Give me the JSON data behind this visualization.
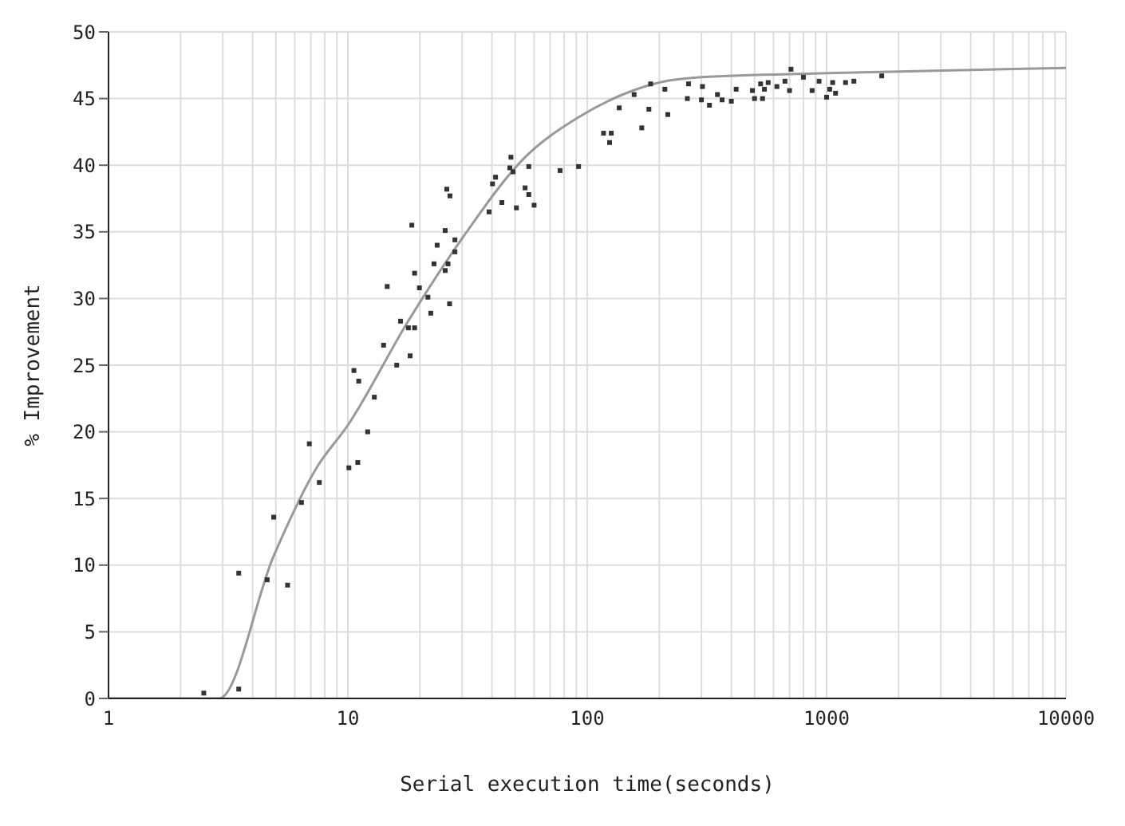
{
  "chart_data": {
    "type": "scatter",
    "xlabel": "Serial execution time(seconds)",
    "ylabel": "% Improvement",
    "log": "x",
    "grid": true,
    "xlim": [
      1,
      10000
    ],
    "ylim": [
      0,
      50
    ],
    "xticks": [
      1,
      {
        "value": 2,
        "label": null
      },
      {
        "value": 3,
        "label": null
      },
      {
        "value": 4,
        "label": null
      },
      {
        "value": 5,
        "label": null
      },
      {
        "value": 6,
        "label": null
      },
      {
        "value": 7,
        "label": null
      },
      {
        "value": 8,
        "label": null
      },
      {
        "value": 9,
        "label": null
      },
      10,
      {
        "value": 20,
        "label": null
      },
      {
        "value": 30,
        "label": null
      },
      {
        "value": 40,
        "label": null
      },
      {
        "value": 50,
        "label": null
      },
      {
        "value": 60,
        "label": null
      },
      {
        "value": 70,
        "label": null
      },
      {
        "value": 80,
        "label": null
      },
      {
        "value": 90,
        "label": null
      },
      100,
      {
        "value": 200,
        "label": null
      },
      {
        "value": 300,
        "label": null
      },
      {
        "value": 400,
        "label": null
      },
      {
        "value": 500,
        "label": null
      },
      {
        "value": 600,
        "label": null
      },
      {
        "value": 700,
        "label": null
      },
      {
        "value": 800,
        "label": null
      },
      {
        "value": 900,
        "label": null
      },
      1000,
      {
        "value": 2000,
        "label": null
      },
      {
        "value": 3000,
        "label": null
      },
      {
        "value": 4000,
        "label": null
      },
      {
        "value": 5000,
        "label": null
      },
      {
        "value": 6000,
        "label": null
      },
      {
        "value": 7000,
        "label": null
      },
      {
        "value": 8000,
        "label": null
      },
      {
        "value": 9000,
        "label": null
      },
      10000
    ],
    "yticks": [
      0,
      5,
      10,
      15,
      20,
      25,
      30,
      35,
      40,
      45,
      50
    ],
    "series": [
      {
        "marker": "square",
        "color": "#333333",
        "x": [
          2.5,
          3.5,
          3.5,
          4.9,
          4.6,
          5.6,
          6.4,
          6.9,
          7.6,
          10.1,
          11,
          12.1,
          12.9,
          10.6,
          11.1,
          16,
          18.2,
          14.1,
          16.6,
          17.9,
          19,
          14.6,
          19.9,
          19,
          21.6,
          22.2,
          26.6,
          22.9,
          25.5,
          26.2,
          28,
          23.6,
          28,
          25.5,
          18.5,
          25.9,
          26.7,
          38.9,
          40.2,
          41.4,
          49,
          47.5,
          48,
          55,
          57,
          50.6,
          60,
          44,
          57,
          77,
          92,
          117,
          126,
          124,
          169,
          136,
          181,
          157,
          217,
          211,
          184,
          262,
          265,
          303,
          300,
          324,
          350,
          366,
          400,
          419,
          490,
          500,
          540,
          530,
          570,
          550,
          620,
          670,
          710,
          700,
          800,
          870,
          930,
          1000,
          1030,
          1090,
          1060,
          1200,
          1300,
          1700
        ],
        "values": [
          0.4,
          9.4,
          0.7,
          13.6,
          8.9,
          8.5,
          14.7,
          19.1,
          16.2,
          17.3,
          17.7,
          20,
          22.6,
          24.6,
          23.8,
          25,
          25.7,
          26.5,
          28.3,
          27.8,
          27.8,
          30.9,
          30.8,
          31.9,
          30.1,
          28.9,
          29.6,
          32.6,
          32.1,
          32.6,
          33.5,
          34,
          34.4,
          35.1,
          35.5,
          38.2,
          37.7,
          36.5,
          38.6,
          39.1,
          39.5,
          39.8,
          40.6,
          38.3,
          37.8,
          36.8,
          37,
          37.2,
          39.9,
          39.6,
          39.9,
          42.4,
          42.4,
          41.7,
          42.8,
          44.3,
          44.2,
          45.3,
          43.8,
          45.7,
          46.1,
          45,
          46.1,
          45.9,
          44.9,
          44.5,
          45.3,
          44.9,
          44.8,
          45.7,
          45.6,
          45,
          45,
          46.1,
          46.2,
          45.7,
          45.9,
          46.3,
          47.2,
          45.6,
          46.6,
          45.6,
          46.3,
          45.1,
          45.7,
          45.4,
          46.2,
          46.2,
          46.3,
          46.7
        ]
      },
      {
        "type": "line",
        "marker": "none",
        "color": "#999999",
        "x": [
          1,
          2.9,
          4.9,
          7.4,
          10,
          18,
          30,
          55,
          92,
          150,
          200,
          300,
          1000,
          10000
        ],
        "values": [
          0,
          0,
          10.7,
          17.3,
          20.5,
          28.4,
          34.5,
          40.6,
          43.6,
          45.5,
          46.2,
          46.6,
          46.9,
          47.3
        ]
      }
    ]
  }
}
